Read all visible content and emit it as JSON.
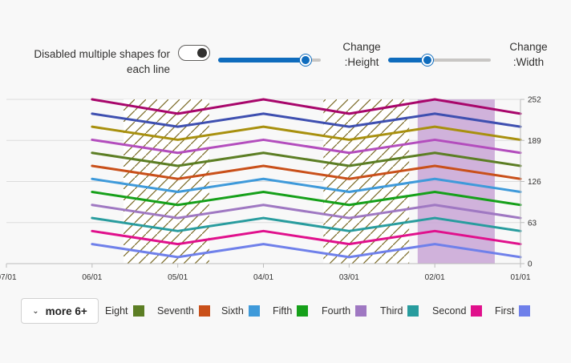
{
  "controls": {
    "toggle_label": "Disabled multiple shapes for each line",
    "toggle_on": true,
    "height_label": "Change :Height",
    "height_value": 0.85,
    "width_label": "Change :Width",
    "width_value": 0.38
  },
  "legend": {
    "more_label": "more 6+",
    "items": [
      {
        "name": "Eight",
        "color": "#5c7e24"
      },
      {
        "name": "Seventh",
        "color": "#c9501a"
      },
      {
        "name": "Sixth",
        "color": "#3f9ada"
      },
      {
        "name": "Fifth",
        "color": "#16a01a"
      },
      {
        "name": "Fourth",
        "color": "#9f78c2"
      },
      {
        "name": "Third",
        "color": "#289c9e"
      },
      {
        "name": "Second",
        "color": "#e0108c"
      },
      {
        "name": "First",
        "color": "#6f80ea"
      }
    ]
  },
  "chart_data": {
    "type": "line",
    "x": [
      "06/01",
      "05/01",
      "04/01",
      "03/01",
      "02/01",
      "01/01"
    ],
    "x_ticks": [
      "07/01",
      "06/01",
      "05/01",
      "04/01",
      "03/01",
      "02/01",
      "01/01"
    ],
    "y_ticks": [
      "0",
      "63",
      "126",
      "189",
      "252"
    ],
    "ylim": [
      0,
      252
    ],
    "y_axis_position": "right",
    "grid": true,
    "series": [
      {
        "name": "First",
        "color": "#6f80ea",
        "values": [
          30,
          10,
          30,
          10,
          30,
          10
        ]
      },
      {
        "name": "Second",
        "color": "#e0108c",
        "values": [
          50,
          30,
          50,
          30,
          50,
          30
        ]
      },
      {
        "name": "Third",
        "color": "#289c9e",
        "values": [
          70,
          50,
          70,
          50,
          70,
          50
        ]
      },
      {
        "name": "Fourth",
        "color": "#9f78c2",
        "values": [
          90,
          70,
          90,
          70,
          90,
          70
        ]
      },
      {
        "name": "Fifth",
        "color": "#16a01a",
        "values": [
          110,
          90,
          110,
          90,
          110,
          90
        ]
      },
      {
        "name": "Sixth",
        "color": "#3f9ada",
        "values": [
          130,
          110,
          130,
          110,
          130,
          110
        ]
      },
      {
        "name": "Seventh",
        "color": "#c9501a",
        "values": [
          150,
          130,
          150,
          130,
          150,
          130
        ]
      },
      {
        "name": "Eight",
        "color": "#5c7e24",
        "values": [
          170,
          150,
          170,
          150,
          170,
          150
        ]
      },
      {
        "color": "#b34dbd",
        "values": [
          190,
          170,
          190,
          170,
          190,
          170
        ]
      },
      {
        "color": "#a8900e",
        "values": [
          210,
          190,
          210,
          190,
          210,
          190
        ]
      },
      {
        "color": "#3e4fb0",
        "values": [
          230,
          210,
          230,
          210,
          230,
          210
        ]
      },
      {
        "color": "#a8066b",
        "values": [
          252,
          230,
          252,
          230,
          252,
          230
        ]
      }
    ],
    "bands": [
      {
        "from": "05/20",
        "to": "04/20",
        "style": "hatched",
        "color": "#7a6a26"
      },
      {
        "from": "03/10",
        "to": "02/10",
        "style": "hatched",
        "color": "#7a6a26"
      },
      {
        "from": "02/07",
        "to": "01/10",
        "style": "solid",
        "color": "#c9a6d6"
      }
    ]
  }
}
